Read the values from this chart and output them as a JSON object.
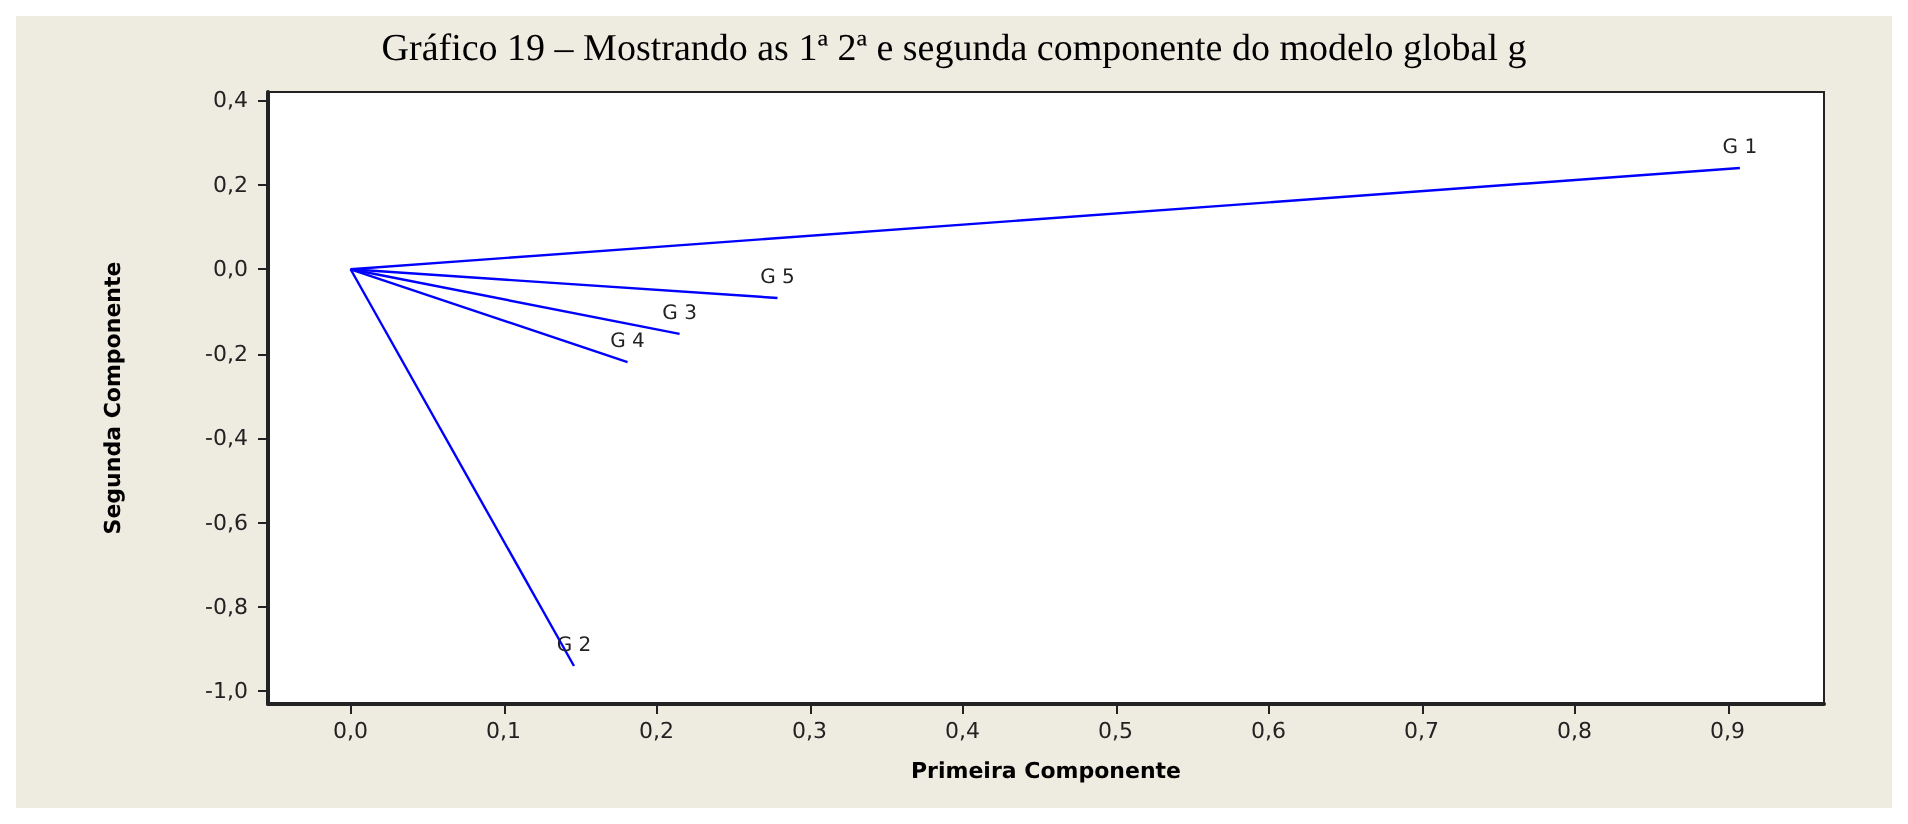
{
  "chart_data": {
    "type": "line",
    "title": "Gráfico 19 – Mostrando as 1ª 2ª e segunda componente do modelo global g",
    "xlabel": "Primeira Componente",
    "ylabel": "Segunda Componente",
    "marker": "none",
    "grid": false,
    "xlim": [
      -0.054,
      0.963
    ],
    "ylim": [
      -1.03,
      0.42
    ],
    "xticks": [
      {
        "value": 0,
        "label": "0,0"
      },
      {
        "value": 0.1,
        "label": "0,1"
      },
      {
        "value": 0.2,
        "label": "0,2"
      },
      {
        "value": 0.3,
        "label": "0,3"
      },
      {
        "value": 0.4,
        "label": "0,4"
      },
      {
        "value": 0.5,
        "label": "0,5"
      },
      {
        "value": 0.6,
        "label": "0,6"
      },
      {
        "value": 0.7,
        "label": "0,7"
      },
      {
        "value": 0.8,
        "label": "0,8"
      },
      {
        "value": 0.9,
        "label": "0,9"
      }
    ],
    "yticks": [
      {
        "value": 0.4,
        "label": "0,4"
      },
      {
        "value": 0.2,
        "label": "0,2"
      },
      {
        "value": 0,
        "label": "0,0"
      },
      {
        "value": -0.2,
        "label": "-0,2"
      },
      {
        "value": -0.4,
        "label": "-0,4"
      },
      {
        "value": -0.6,
        "label": "-0,6"
      },
      {
        "value": -0.8,
        "label": "-0,8"
      },
      {
        "value": -1,
        "label": "-1,0"
      }
    ],
    "series": [
      {
        "name": "G 1",
        "color": "#0000ff",
        "x": [
          0,
          0.908
        ],
        "values": [
          0,
          0.24
        ]
      },
      {
        "name": "G 2",
        "color": "#0000ff",
        "x": [
          0,
          0.146
        ],
        "values": [
          0,
          -0.94
        ]
      },
      {
        "name": "G 3",
        "color": "#0000ff",
        "x": [
          0,
          0.215
        ],
        "values": [
          0,
          -0.153
        ]
      },
      {
        "name": "G 4",
        "color": "#0000ff",
        "x": [
          0,
          0.181
        ],
        "values": [
          0,
          -0.22
        ]
      },
      {
        "name": "G 5",
        "color": "#0000ff",
        "x": [
          0,
          0.279
        ],
        "values": [
          0,
          -0.068
        ]
      }
    ]
  }
}
